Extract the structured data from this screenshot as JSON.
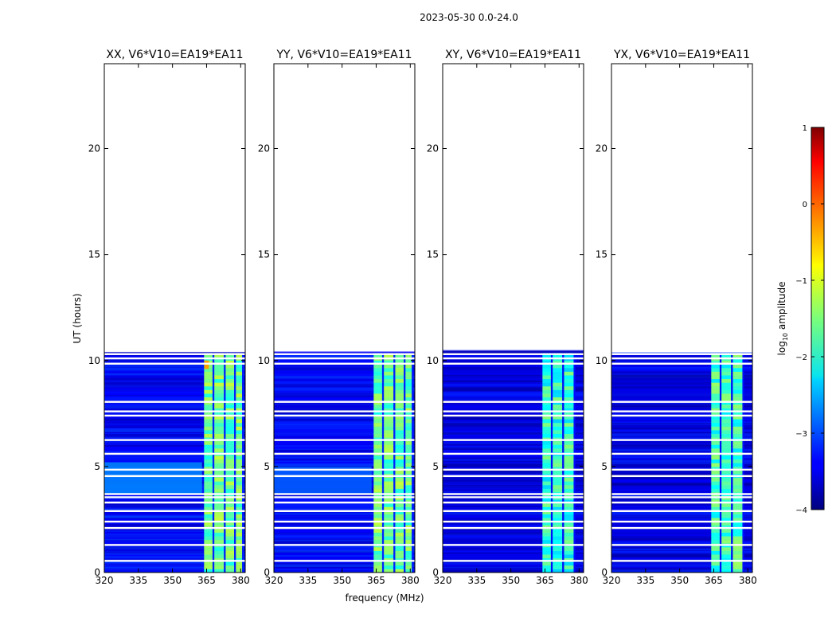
{
  "chart_data": {
    "type": "heatmap",
    "suptitle": "2023-05-30 0.0-24.0",
    "xlabel": "frequency (MHz)",
    "ylabel": "UT (hours)",
    "xlim": [
      320,
      382
    ],
    "ylim": [
      0,
      24
    ],
    "xticks": [
      320,
      335,
      350,
      365,
      380
    ],
    "yticks": [
      0,
      5,
      10,
      15,
      20
    ],
    "data_time_range_hours": [
      0,
      10.35
    ],
    "blank_rows_hours": [
      0.55,
      1.3,
      2.1,
      2.4,
      2.9,
      3.3,
      3.55,
      3.7,
      4.55,
      4.85,
      5.6,
      6.25,
      7.4,
      7.6,
      8.05,
      9.85,
      10.1,
      10.3
    ],
    "subplots": [
      {
        "title": "XX, V6*V10=EA19*EA11",
        "background_level": -3.4,
        "bright_band_mhz": [
          363.5,
          381
        ],
        "band_level": -1.6,
        "band_subchannel_edges_mhz": [
          363.5,
          368,
          373,
          377.5,
          381
        ],
        "features": [
          {
            "freq_mhz": [
              320,
              363
            ],
            "time_hours": [
              3.7,
              5.2
            ],
            "level": -2.7,
            "label": "enhanced low-band"
          },
          {
            "freq_mhz": [
              364,
              366
            ],
            "time_hours": [
              9.6,
              10.0
            ],
            "level": -0.4,
            "label": "hot spot"
          }
        ]
      },
      {
        "title": "YY, V6*V10=EA19*EA11",
        "background_level": -3.4,
        "bright_band_mhz": [
          363.5,
          381
        ],
        "band_level": -1.6,
        "band_subchannel_edges_mhz": [
          363.5,
          368,
          373,
          377.5,
          381
        ],
        "features": [
          {
            "freq_mhz": [
              320,
              363
            ],
            "time_hours": [
              3.7,
              5.0
            ],
            "level": -2.9,
            "label": "enhanced low-band"
          }
        ]
      },
      {
        "title": "XY, V6*V10=EA19*EA11",
        "background_level": -3.5,
        "bright_band_mhz": [
          363.5,
          378
        ],
        "band_level": -1.9,
        "band_subchannel_edges_mhz": [
          363.5,
          368,
          373,
          378
        ],
        "features": []
      },
      {
        "title": "YX, V6*V10=EA19*EA11",
        "background_level": -3.5,
        "bright_band_mhz": [
          363.5,
          378
        ],
        "band_level": -1.8,
        "band_subchannel_edges_mhz": [
          363.5,
          368,
          373,
          378
        ],
        "features": []
      }
    ],
    "colorbar": {
      "label": "log₁₀ amplitude",
      "label_base": "log",
      "label_sub": "10",
      "label_rest": " amplitude",
      "range": [
        -4,
        1
      ],
      "ticks": [
        -4,
        -3,
        -2,
        -1,
        0,
        1
      ],
      "tick_labels": [
        "−4",
        "−3",
        "−2",
        "−1",
        "0",
        "1"
      ],
      "colormap": "jet"
    }
  }
}
